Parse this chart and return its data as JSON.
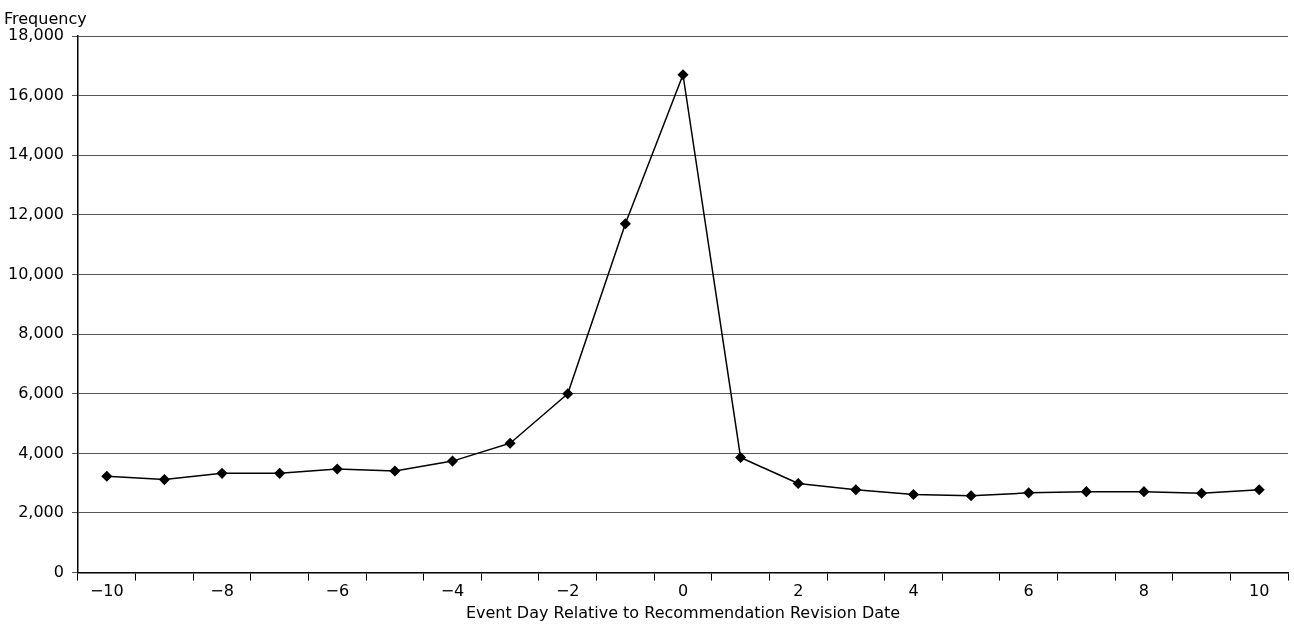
{
  "chart_data": {
    "type": "line",
    "xlabel": "Event Day Relative to Recommendation Revision Date",
    "ylabel": "Frequency",
    "categories": [
      "−10",
      null,
      "−8",
      null,
      "−6",
      null,
      "−4",
      null,
      "−2",
      null,
      "0",
      null,
      "2",
      null,
      "4",
      null,
      "6",
      null,
      "8",
      null,
      "10"
    ],
    "series": [
      {
        "color": "#000000",
        "values": [
          3230,
          3120,
          3330,
          3330,
          3475,
          3410,
          3740,
          4340,
          6000,
          11700,
          16700,
          3860,
          2990,
          2780,
          2620,
          2580,
          2675,
          2715,
          2715,
          2660,
          2780
        ]
      }
    ],
    "ylim": [
      0,
      18000
    ],
    "yticks": [
      {
        "value": 0,
        "label": "0"
      },
      {
        "value": 2000,
        "label": "2,000"
      },
      {
        "value": 4000,
        "label": "4,000"
      },
      {
        "value": 6000,
        "label": "6,000"
      },
      {
        "value": 8000,
        "label": "8,000"
      },
      {
        "value": 10000,
        "label": "10,000"
      },
      {
        "value": 12000,
        "label": "12,000"
      },
      {
        "value": 14000,
        "label": "14,000"
      },
      {
        "value": 16000,
        "label": "16,000"
      },
      {
        "value": 18000,
        "label": "18,000"
      }
    ],
    "grid": "y",
    "legend": false,
    "marker": "diamond",
    "line_style": "solid"
  }
}
